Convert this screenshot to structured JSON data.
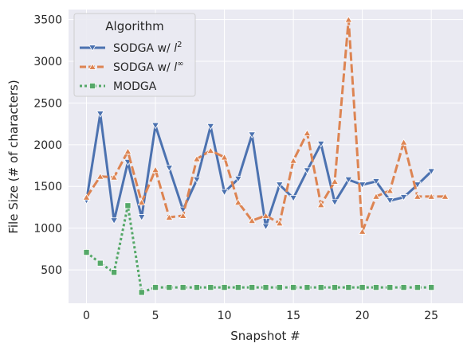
{
  "chart_data": {
    "type": "line",
    "xlabel": "Snapshot #",
    "ylabel": "File Size (# of characters)",
    "xlim": [
      -1.3,
      27.3
    ],
    "ylim": [
      100,
      3620
    ],
    "xticks": [
      0,
      5,
      10,
      15,
      20,
      25
    ],
    "yticks": [
      500,
      1000,
      1500,
      2000,
      2500,
      3000,
      3500
    ],
    "grid": true,
    "legend": {
      "title": "Algorithm",
      "placement": "top-left",
      "entries": [
        {
          "prefix": "SODGA w/ ",
          "italic": "l",
          "sup": "2"
        },
        {
          "prefix": "SODGA w/ ",
          "italic": "l",
          "sup": "∞"
        },
        {
          "prefix": "MODGA",
          "italic": "",
          "sup": ""
        }
      ]
    },
    "series": [
      {
        "name": "SODGA w/ l²",
        "color": "#4c72b0",
        "style": "solid",
        "marker": "triangle-down",
        "x": [
          0,
          1,
          2,
          3,
          4,
          5,
          6,
          7,
          8,
          9,
          10,
          11,
          12,
          13,
          14,
          15,
          16,
          17,
          18,
          19,
          20,
          21,
          22,
          23,
          24,
          25
        ],
        "y": [
          1330,
          2370,
          1090,
          1790,
          1130,
          2230,
          1720,
          1220,
          1580,
          2220,
          1430,
          1590,
          2120,
          1020,
          1520,
          1360,
          1690,
          2010,
          1310,
          1580,
          1520,
          1560,
          1330,
          1370,
          1520,
          1680
        ]
      },
      {
        "name": "SODGA w/ l∞",
        "color": "#dd8452",
        "style": "dashed",
        "marker": "triangle-up",
        "x": [
          0,
          1,
          2,
          3,
          4,
          5,
          6,
          7,
          8,
          9,
          10,
          11,
          12,
          13,
          14,
          15,
          16,
          17,
          18,
          19,
          20,
          21,
          22,
          23,
          24,
          25,
          26
        ],
        "y": [
          1370,
          1620,
          1610,
          1920,
          1310,
          1700,
          1130,
          1150,
          1830,
          1930,
          1850,
          1310,
          1090,
          1150,
          1060,
          1810,
          2140,
          1280,
          1560,
          3500,
          960,
          1380,
          1450,
          2030,
          1380,
          1380,
          1380
        ]
      },
      {
        "name": "MODGA",
        "color": "#55a868",
        "style": "dotted",
        "marker": "square",
        "x": [
          0,
          1,
          2,
          3,
          4,
          5,
          6,
          7,
          8,
          9,
          10,
          11,
          12,
          13,
          14,
          15,
          16,
          17,
          18,
          19,
          20,
          21,
          22,
          23,
          24,
          25
        ],
        "y": [
          710,
          580,
          470,
          1270,
          230,
          290,
          290,
          290,
          290,
          290,
          290,
          290,
          290,
          290,
          290,
          290,
          290,
          290,
          290,
          290,
          290,
          290,
          290,
          290,
          290,
          290
        ]
      }
    ]
  }
}
